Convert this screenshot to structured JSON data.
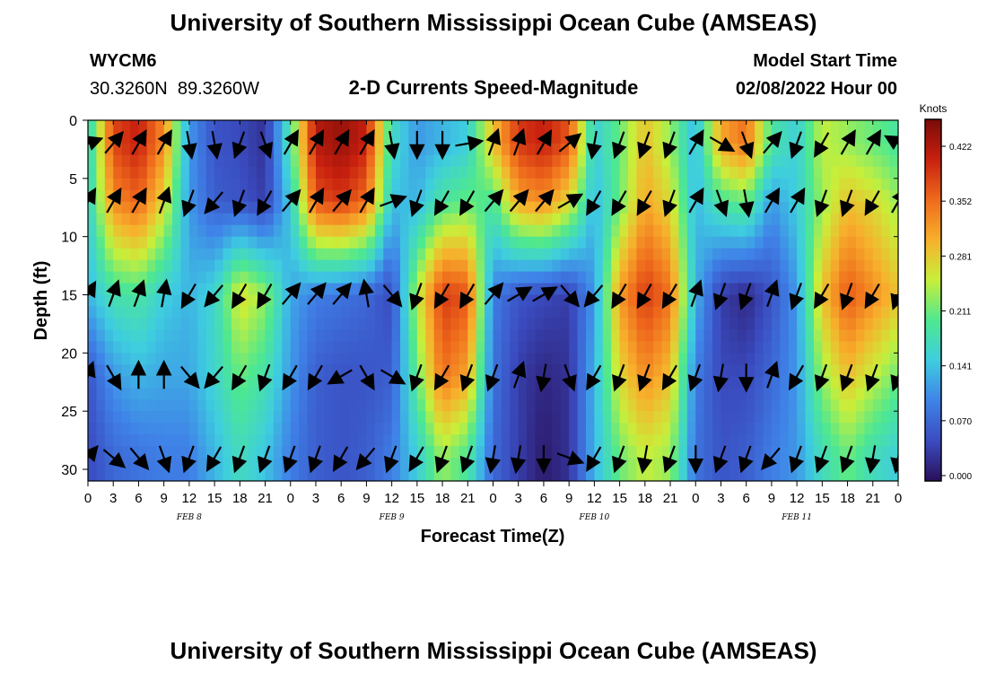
{
  "page": {
    "title": "University of Southern Mississippi Ocean Cube (AMSEAS)",
    "title_repeat": "University of Southern Mississippi Ocean Cube (AMSEAS)",
    "station_id": "WYCM6",
    "location": "30.3260N  89.3260W",
    "subtitle": "2-D Currents Speed-Magnitude",
    "model_start_label": "Model Start Time",
    "model_start_value": "02/08/2022 Hour 00"
  },
  "chart_data": {
    "type": "heatmap",
    "title": "2-D Currents Speed-Magnitude",
    "xlabel": "Forecast Time(Z)",
    "ylabel": "Depth (ft)",
    "x_range_hours": [
      0,
      96
    ],
    "y_range_ft": [
      0,
      31
    ],
    "x_tick_labels": [
      "0",
      "3",
      "6",
      "9",
      "12",
      "15",
      "18",
      "21",
      "0",
      "3",
      "6",
      "9",
      "12",
      "15",
      "18",
      "21",
      "0",
      "3",
      "6",
      "9",
      "12",
      "15",
      "18",
      "21",
      "0",
      "3",
      "6",
      "9",
      "12",
      "15",
      "18",
      "21",
      "0"
    ],
    "y_ticks": [
      0,
      5,
      10,
      15,
      20,
      25,
      30
    ],
    "date_labels": [
      {
        "label": "FEB 8",
        "hour": 12
      },
      {
        "label": "FEB 9",
        "hour": 36
      },
      {
        "label": "FEB 10",
        "hour": 60
      },
      {
        "label": "FEB 11",
        "hour": 84
      }
    ],
    "colorbar": {
      "unit": "Knots",
      "ticks": [
        "0.422",
        "0.352",
        "0.281",
        "0.211",
        "0.141",
        "0.070",
        "0.000"
      ],
      "min": 0.0,
      "max": 0.47,
      "colors": [
        "#2a0f5a",
        "#3a4cc0",
        "#3f82e8",
        "#3ecde0",
        "#4ee890",
        "#c8ef3a",
        "#f7b02c",
        "#ef6a1c",
        "#c8200f",
        "#7a0a08"
      ]
    },
    "speed_profiles": [
      {
        "hour": 0,
        "layers": [
          0.16,
          0.16,
          0.14,
          0.06,
          0.05
        ]
      },
      {
        "hour": 3,
        "layers": [
          0.39,
          0.34,
          0.19,
          0.12,
          0.08
        ]
      },
      {
        "hour": 6,
        "layers": [
          0.42,
          0.37,
          0.2,
          0.14,
          0.09
        ]
      },
      {
        "hour": 9,
        "layers": [
          0.34,
          0.28,
          0.16,
          0.13,
          0.1
        ]
      },
      {
        "hour": 12,
        "layers": [
          0.12,
          0.12,
          0.14,
          0.13,
          0.1
        ]
      },
      {
        "hour": 15,
        "layers": [
          0.06,
          0.07,
          0.17,
          0.17,
          0.14
        ]
      },
      {
        "hour": 18,
        "layers": [
          0.05,
          0.06,
          0.28,
          0.22,
          0.18
        ]
      },
      {
        "hour": 21,
        "layers": [
          0.03,
          0.04,
          0.24,
          0.19,
          0.15
        ]
      },
      {
        "hour": 24,
        "layers": [
          0.2,
          0.16,
          0.13,
          0.12,
          0.1
        ]
      },
      {
        "hour": 27,
        "layers": [
          0.43,
          0.38,
          0.1,
          0.07,
          0.07
        ]
      },
      {
        "hour": 30,
        "layers": [
          0.45,
          0.4,
          0.09,
          0.06,
          0.06
        ]
      },
      {
        "hour": 33,
        "layers": [
          0.42,
          0.36,
          0.08,
          0.06,
          0.07
        ]
      },
      {
        "hour": 36,
        "layers": [
          0.18,
          0.15,
          0.05,
          0.07,
          0.1
        ]
      },
      {
        "hour": 39,
        "layers": [
          0.12,
          0.14,
          0.26,
          0.22,
          0.16
        ]
      },
      {
        "hour": 42,
        "layers": [
          0.14,
          0.2,
          0.4,
          0.36,
          0.24
        ]
      },
      {
        "hour": 45,
        "layers": [
          0.16,
          0.22,
          0.38,
          0.32,
          0.2
        ]
      },
      {
        "hour": 48,
        "layers": [
          0.3,
          0.2,
          0.1,
          0.09,
          0.08
        ]
      },
      {
        "hour": 51,
        "layers": [
          0.4,
          0.32,
          0.06,
          0.04,
          0.04
        ]
      },
      {
        "hour": 54,
        "layers": [
          0.42,
          0.34,
          0.05,
          0.02,
          0.01
        ]
      },
      {
        "hour": 57,
        "layers": [
          0.38,
          0.28,
          0.04,
          0.03,
          0.03
        ]
      },
      {
        "hour": 60,
        "layers": [
          0.16,
          0.14,
          0.12,
          0.14,
          0.14
        ]
      },
      {
        "hour": 63,
        "layers": [
          0.22,
          0.22,
          0.33,
          0.28,
          0.22
        ]
      },
      {
        "hour": 66,
        "layers": [
          0.3,
          0.32,
          0.4,
          0.34,
          0.26
        ]
      },
      {
        "hour": 69,
        "layers": [
          0.24,
          0.28,
          0.36,
          0.3,
          0.24
        ]
      },
      {
        "hour": 72,
        "layers": [
          0.14,
          0.14,
          0.14,
          0.1,
          0.09
        ]
      },
      {
        "hour": 75,
        "layers": [
          0.32,
          0.2,
          0.04,
          0.05,
          0.06
        ]
      },
      {
        "hour": 78,
        "layers": [
          0.36,
          0.22,
          0.02,
          0.05,
          0.07
        ]
      },
      {
        "hour": 81,
        "layers": [
          0.2,
          0.12,
          0.06,
          0.08,
          0.1
        ]
      },
      {
        "hour": 84,
        "layers": [
          0.16,
          0.16,
          0.12,
          0.12,
          0.12
        ]
      },
      {
        "hour": 87,
        "layers": [
          0.26,
          0.24,
          0.3,
          0.24,
          0.18
        ]
      },
      {
        "hour": 90,
        "layers": [
          0.24,
          0.3,
          0.38,
          0.3,
          0.22
        ]
      },
      {
        "hour": 93,
        "layers": [
          0.22,
          0.28,
          0.34,
          0.26,
          0.18
        ]
      },
      {
        "hour": 96,
        "layers": [
          0.2,
          0.24,
          0.3,
          0.22,
          0.16
        ]
      }
    ],
    "layer_depths_ft": [
      2,
      7,
      15,
      22,
      29
    ],
    "vector_directions_deg": [
      {
        "hour": 0,
        "layers": [
          70,
          30,
          30,
          20,
          40
        ]
      },
      {
        "hour": 3,
        "layers": [
          40,
          30,
          20,
          150,
          130
        ]
      },
      {
        "hour": 6,
        "layers": [
          30,
          30,
          20,
          0,
          140
        ]
      },
      {
        "hour": 9,
        "layers": [
          30,
          20,
          10,
          0,
          160
        ]
      },
      {
        "hour": 12,
        "layers": [
          170,
          200,
          210,
          140,
          200
        ]
      },
      {
        "hour": 15,
        "layers": [
          170,
          220,
          220,
          220,
          210
        ]
      },
      {
        "hour": 18,
        "layers": [
          200,
          200,
          210,
          210,
          200
        ]
      },
      {
        "hour": 21,
        "layers": [
          160,
          210,
          210,
          200,
          200
        ]
      },
      {
        "hour": 24,
        "layers": [
          30,
          40,
          40,
          210,
          200
        ]
      },
      {
        "hour": 27,
        "layers": [
          30,
          30,
          40,
          210,
          200
        ]
      },
      {
        "hour": 30,
        "layers": [
          30,
          40,
          40,
          240,
          210
        ]
      },
      {
        "hour": 33,
        "layers": [
          30,
          30,
          350,
          150,
          220
        ]
      },
      {
        "hour": 36,
        "layers": [
          170,
          70,
          140,
          120,
          200
        ]
      },
      {
        "hour": 39,
        "layers": [
          180,
          200,
          200,
          200,
          210
        ]
      },
      {
        "hour": 42,
        "layers": [
          180,
          210,
          210,
          210,
          200
        ]
      },
      {
        "hour": 45,
        "layers": [
          80,
          210,
          210,
          200,
          200
        ]
      },
      {
        "hour": 48,
        "layers": [
          20,
          40,
          40,
          200,
          190
        ]
      },
      {
        "hour": 51,
        "layers": [
          20,
          40,
          60,
          20,
          190
        ]
      },
      {
        "hour": 54,
        "layers": [
          30,
          40,
          60,
          190,
          180
        ]
      },
      {
        "hour": 57,
        "layers": [
          50,
          60,
          140,
          160,
          110
        ]
      },
      {
        "hour": 60,
        "layers": [
          190,
          210,
          220,
          210,
          210
        ]
      },
      {
        "hour": 63,
        "layers": [
          200,
          210,
          210,
          200,
          200
        ]
      },
      {
        "hour": 66,
        "layers": [
          200,
          210,
          210,
          200,
          190
        ]
      },
      {
        "hour": 69,
        "layers": [
          200,
          200,
          210,
          210,
          200
        ]
      },
      {
        "hour": 72,
        "layers": [
          30,
          30,
          20,
          200,
          180
        ]
      },
      {
        "hour": 75,
        "layers": [
          120,
          160,
          200,
          190,
          200
        ]
      },
      {
        "hour": 78,
        "layers": [
          160,
          170,
          200,
          180,
          200
        ]
      },
      {
        "hour": 81,
        "layers": [
          40,
          30,
          20,
          20,
          220
        ]
      },
      {
        "hour": 84,
        "layers": [
          200,
          30,
          200,
          210,
          200
        ]
      },
      {
        "hour": 87,
        "layers": [
          210,
          200,
          210,
          200,
          200
        ]
      },
      {
        "hour": 90,
        "layers": [
          30,
          200,
          200,
          200,
          200
        ]
      },
      {
        "hour": 93,
        "layers": [
          30,
          210,
          210,
          200,
          190
        ]
      },
      {
        "hour": 96,
        "layers": [
          300,
          30,
          200,
          200,
          190
        ]
      }
    ]
  }
}
